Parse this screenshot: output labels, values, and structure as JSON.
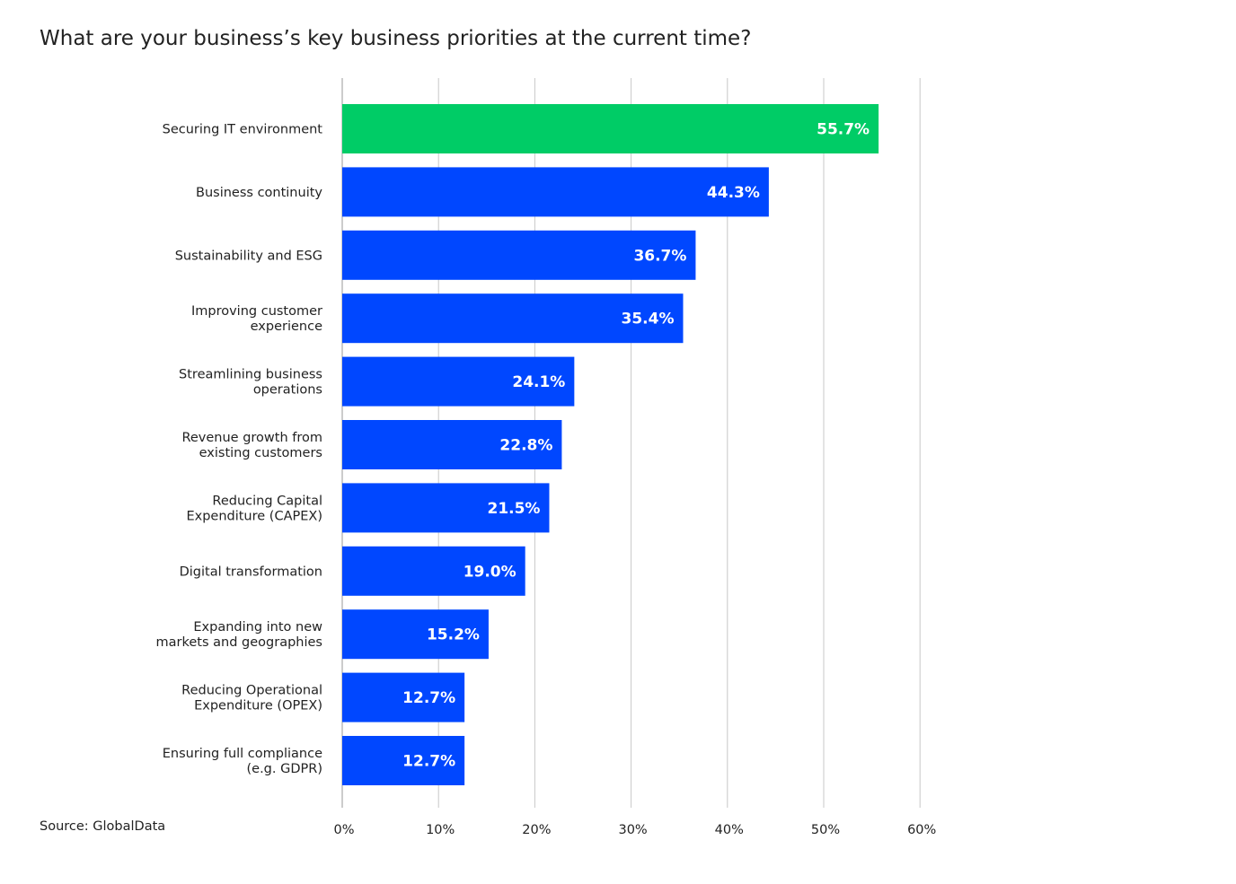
{
  "title": "What are your business’s key business priorities at the current time?",
  "source": "Source: GlobalData",
  "colors": {
    "highlight": "#00CC66",
    "bar": "#0047FF",
    "grid": "#c8c8c8"
  },
  "chart_data": {
    "type": "bar",
    "orientation": "horizontal",
    "title": "What are your business’s key business priorities at the current time?",
    "categories": [
      [
        "Securing IT environment"
      ],
      [
        "Business continuity"
      ],
      [
        "Sustainability and ESG"
      ],
      [
        "Improving customer",
        "experience"
      ],
      [
        "Streamlining business",
        "operations"
      ],
      [
        "Revenue growth from",
        "existing customers"
      ],
      [
        "Reducing Capital",
        "Expenditure (CAPEX)"
      ],
      [
        "Digital transformation"
      ],
      [
        "Expanding into new",
        "markets and geographies"
      ],
      [
        "Reducing Operational",
        "Expenditure (OPEX)"
      ],
      [
        "Ensuring full compliance",
        "(e.g. GDPR)"
      ]
    ],
    "values": [
      55.7,
      44.3,
      36.7,
      35.4,
      24.1,
      22.8,
      21.5,
      19.0,
      15.2,
      12.7,
      12.7
    ],
    "value_labels": [
      "55.7%",
      "44.3%",
      "36.7%",
      "35.4%",
      "24.1%",
      "22.8%",
      "21.5%",
      "19.0%",
      "15.2%",
      "12.7%",
      "12.7%"
    ],
    "highlight_index": 0,
    "xlim": [
      0,
      60
    ],
    "xticks": [
      0,
      10,
      20,
      30,
      40,
      50,
      60
    ],
    "xtick_labels": [
      "0%",
      "10%",
      "20%",
      "30%",
      "40%",
      "50%",
      "60%"
    ],
    "grid": true,
    "legend": "none"
  }
}
